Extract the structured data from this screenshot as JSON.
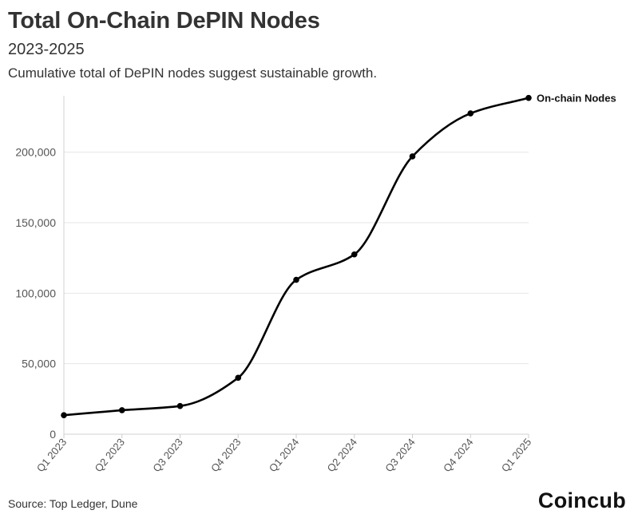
{
  "header": {
    "title": "Total On-Chain DePIN Nodes",
    "subtitle": "2023-2025",
    "description": "Cumulative total of DePIN nodes suggest sustainable growth."
  },
  "footer": {
    "source": "Source: Top Ledger, Dune",
    "brand": "Coincub"
  },
  "chart_data": {
    "type": "line",
    "categories": [
      "Q1 2023",
      "Q2 2023",
      "Q3 2023",
      "Q4 2023",
      "Q1 2024",
      "Q2 2024",
      "Q3 2024",
      "Q4 2024",
      "Q1 2025"
    ],
    "series": [
      {
        "name": "On-chain Nodes",
        "values": [
          13500,
          17000,
          20000,
          40000,
          109500,
          127500,
          197000,
          227500,
          238500
        ],
        "color": "#000000"
      }
    ],
    "yticks": [
      0,
      50000,
      100000,
      150000,
      200000
    ],
    "ytick_labels": [
      "0",
      "50,000",
      "100,000",
      "150,000",
      "200,000"
    ],
    "ylim": [
      0,
      240000
    ],
    "grid": "horizontal",
    "legend": "end-of-line label",
    "xlabel": "",
    "ylabel": ""
  }
}
